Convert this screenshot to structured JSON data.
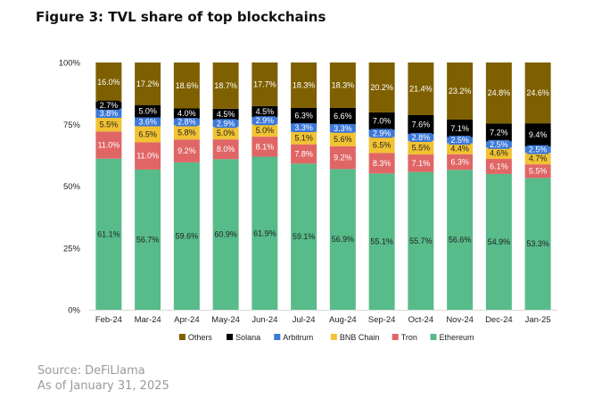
{
  "header": {
    "title": "Figure 3: TVL share of top blockchains"
  },
  "source": {
    "line1": "Source: DeFiLlama",
    "line2": "As of January 31, 2025"
  },
  "colors": {
    "Ethereum": "#57bb8a",
    "Tron": "#e06666",
    "BNB Chain": "#f1c232",
    "Arbitrum": "#3c78d8",
    "Solana": "#000000",
    "Others": "#7f6000"
  },
  "chart_data": {
    "type": "bar",
    "stacked": true,
    "title": "TVL share of top blockchains",
    "categories": [
      "Feb-24",
      "Mar-24",
      "Apr-24",
      "May-24",
      "Jun-24",
      "Jul-24",
      "Aug-24",
      "Sep-24",
      "Oct-24",
      "Nov-24",
      "Dec-24",
      "Jan-25"
    ],
    "series": [
      {
        "name": "Ethereum",
        "values": [
          61.1,
          56.7,
          59.6,
          60.9,
          61.9,
          59.1,
          56.9,
          55.1,
          55.7,
          56.6,
          54.9,
          53.3
        ]
      },
      {
        "name": "Tron",
        "values": [
          11.0,
          11.0,
          9.2,
          8.0,
          8.1,
          7.8,
          9.2,
          8.3,
          7.1,
          6.3,
          6.1,
          5.5
        ]
      },
      {
        "name": "BNB Chain",
        "values": [
          5.5,
          6.5,
          5.8,
          5.0,
          5.0,
          5.1,
          5.6,
          6.5,
          5.5,
          4.4,
          4.6,
          4.7
        ]
      },
      {
        "name": "Arbitrum",
        "values": [
          3.8,
          3.6,
          2.8,
          2.9,
          2.9,
          3.3,
          3.3,
          2.9,
          2.8,
          2.5,
          2.5,
          2.5
        ]
      },
      {
        "name": "Solana",
        "values": [
          2.7,
          5.0,
          4.0,
          4.5,
          4.5,
          6.3,
          6.6,
          7.0,
          7.6,
          7.1,
          7.2,
          9.4
        ]
      },
      {
        "name": "Others",
        "values": [
          16.0,
          17.2,
          18.6,
          18.7,
          17.7,
          18.3,
          18.3,
          20.2,
          21.4,
          23.2,
          24.8,
          24.6
        ]
      }
    ],
    "labels": [
      [
        "61.1%",
        "56.7%",
        "59.6%",
        "60.9%",
        "61.9%",
        "59.1%",
        "56.9%",
        "55.1%",
        "55.7%",
        "56.6%",
        "54.9%",
        "53.3%"
      ],
      [
        "11.0%",
        "11.0%",
        "9.2%",
        "8.0%",
        "8.1%",
        "7.8%",
        "9.2%",
        "8.3%",
        "7.1%",
        "6.3%",
        "6.1%",
        "5.5%"
      ],
      [
        "5.5%",
        "6.5%",
        "5.8%",
        "5.0%",
        "5.0%",
        "5.1%",
        "5.6%",
        "6.5%",
        "5.5%",
        "4.4%",
        "4.6%",
        "4.7%"
      ],
      [
        "3.8%",
        "3.6%",
        "2.8%",
        "2.9%",
        "2.9%",
        "3.3%",
        "3.3%",
        "2.9%",
        "2.8%",
        "2.5%",
        "2.5%",
        "2.5%"
      ],
      [
        "2.7%",
        "5.0%",
        "4.0%",
        "4.5%",
        "4.5%",
        "6.3%",
        "6.6%",
        "7.0%",
        "7.6%",
        "7.1%",
        "7.2%",
        "9.4%"
      ],
      [
        "16.0%",
        "17.2%",
        "18.6%",
        "18.7%",
        "17.7%",
        "18.3%",
        "18.3%",
        "20.2%",
        "21.4%",
        "23.2%",
        "24.8%",
        "24.6%"
      ]
    ],
    "y_ticks": [
      "0%",
      "25%",
      "50%",
      "75%",
      "100%"
    ],
    "ylim": [
      0,
      100
    ],
    "xlabel": "",
    "ylabel": "",
    "legend": {
      "placement": "bottom",
      "order": [
        "Others",
        "Solana",
        "Arbitrum",
        "BNB Chain",
        "Tron",
        "Ethereum"
      ]
    }
  }
}
